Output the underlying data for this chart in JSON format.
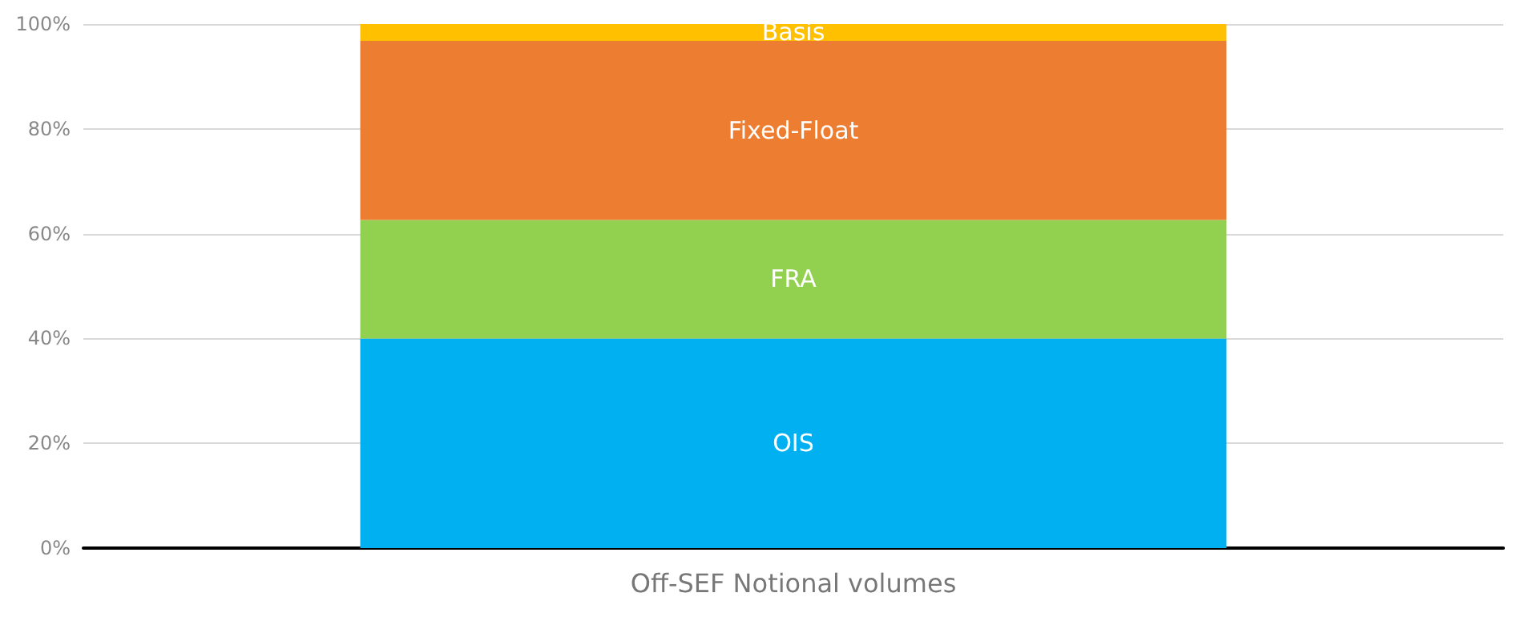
{
  "chart_data": {
    "type": "bar",
    "stacked": true,
    "categories": [
      "Off-SEF Notional volumes"
    ],
    "series": [
      {
        "name": "OIS",
        "color": "#00b0f0",
        "values": [
          40.0
        ]
      },
      {
        "name": "FRA",
        "color": "#92d050",
        "values": [
          22.6
        ]
      },
      {
        "name": "Fixed-Float",
        "color": "#ed7d31",
        "values": [
          34.2
        ]
      },
      {
        "name": "Basis",
        "color": "#ffc000",
        "values": [
          3.2
        ]
      }
    ],
    "ylim": [
      0,
      100
    ],
    "yticks": [
      {
        "value": 0,
        "label": "0%"
      },
      {
        "value": 20,
        "label": "20%"
      },
      {
        "value": 40,
        "label": "40%"
      },
      {
        "value": 60,
        "label": "60%"
      },
      {
        "value": 80,
        "label": "80%"
      },
      {
        "value": 100,
        "label": "100%"
      }
    ],
    "grid": "y",
    "legend": false
  }
}
